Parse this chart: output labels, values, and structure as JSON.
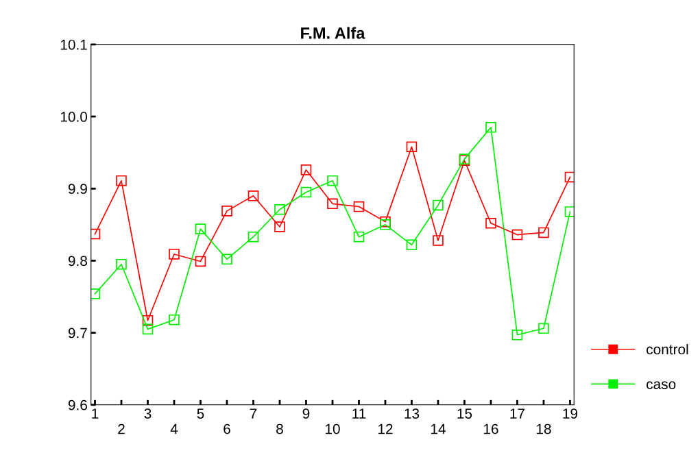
{
  "chart_data": {
    "type": "line",
    "title": "F.M. Alfa",
    "categories": [
      "1",
      "2",
      "3",
      "4",
      "5",
      "6",
      "7",
      "8",
      "9",
      "10",
      "11",
      "12",
      "13",
      "14",
      "15",
      "16",
      "17",
      "18",
      "19"
    ],
    "series": [
      {
        "name": "control",
        "color": "#ff0000",
        "values": [
          9.837,
          9.911,
          9.717,
          9.809,
          9.799,
          9.869,
          9.89,
          9.847,
          9.926,
          9.879,
          9.875,
          9.854,
          9.958,
          9.828,
          9.939,
          9.852,
          9.836,
          9.839,
          9.916
        ]
      },
      {
        "name": "caso",
        "color": "#00ee00",
        "values": [
          9.754,
          9.795,
          9.705,
          9.718,
          9.844,
          9.802,
          9.833,
          9.871,
          9.895,
          9.911,
          9.833,
          9.85,
          9.822,
          9.877,
          9.941,
          9.985,
          9.697,
          9.706,
          9.868
        ]
      }
    ],
    "ylim": [
      9.6,
      10.1
    ],
    "yticks": [
      9.6,
      9.7,
      9.8,
      9.9,
      {
        "value": 10.0,
        "label": "10.0"
      },
      10.1
    ],
    "marker": "square",
    "grid": false,
    "legend": "right"
  }
}
